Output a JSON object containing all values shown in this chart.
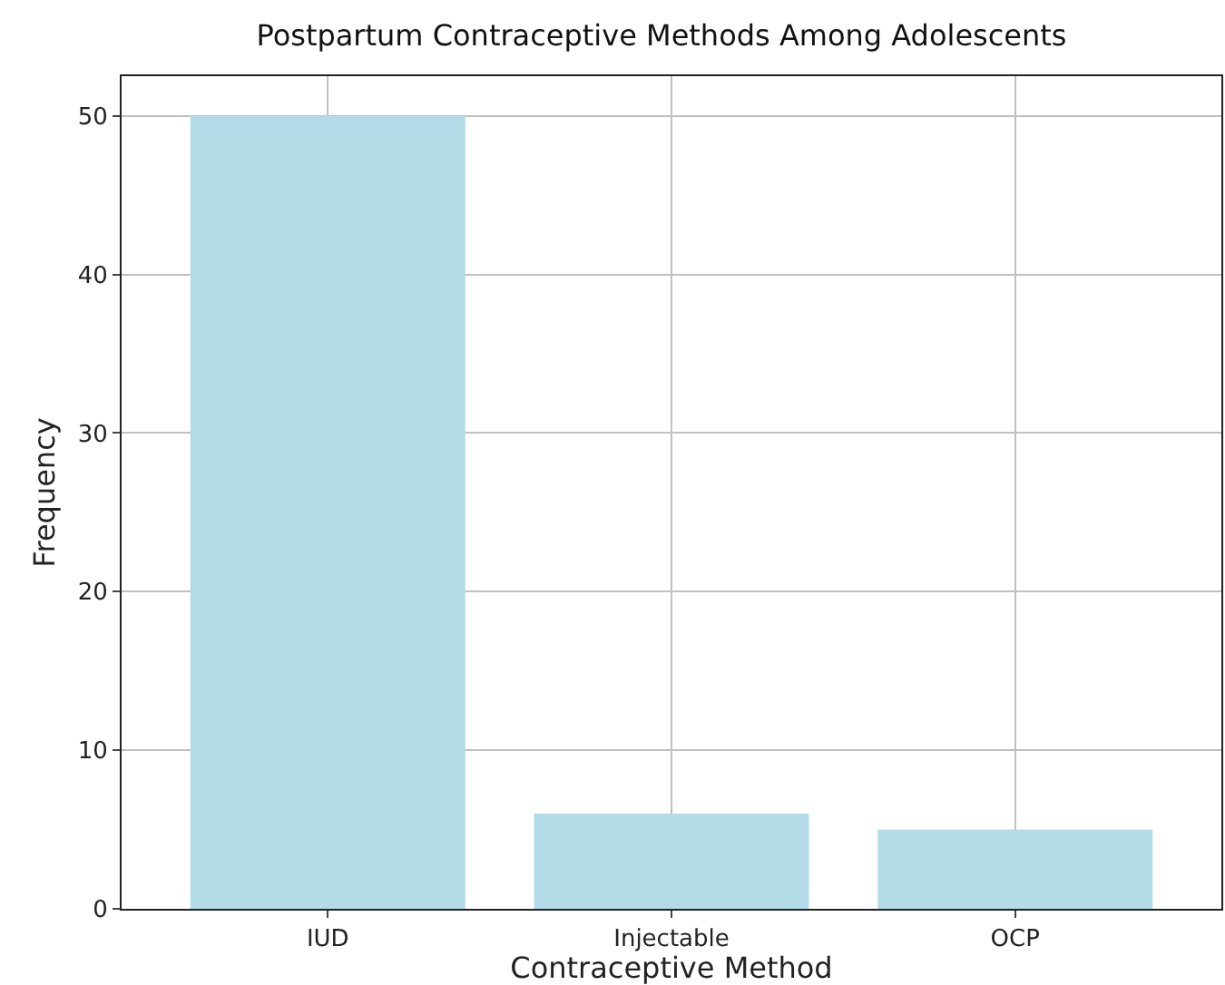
{
  "chart_data": {
    "type": "bar",
    "title": "Postpartum Contraceptive Methods Among Adolescents",
    "xlabel": "Contraceptive Method",
    "ylabel": "Frequency",
    "categories": [
      "IUD",
      "Injectable",
      "OCP"
    ],
    "values": [
      50,
      6,
      5
    ],
    "color": "#b3dce8",
    "ylim": [
      0,
      52.5
    ],
    "yticks": [
      0,
      10,
      20,
      30,
      40,
      50
    ],
    "grid": true
  }
}
